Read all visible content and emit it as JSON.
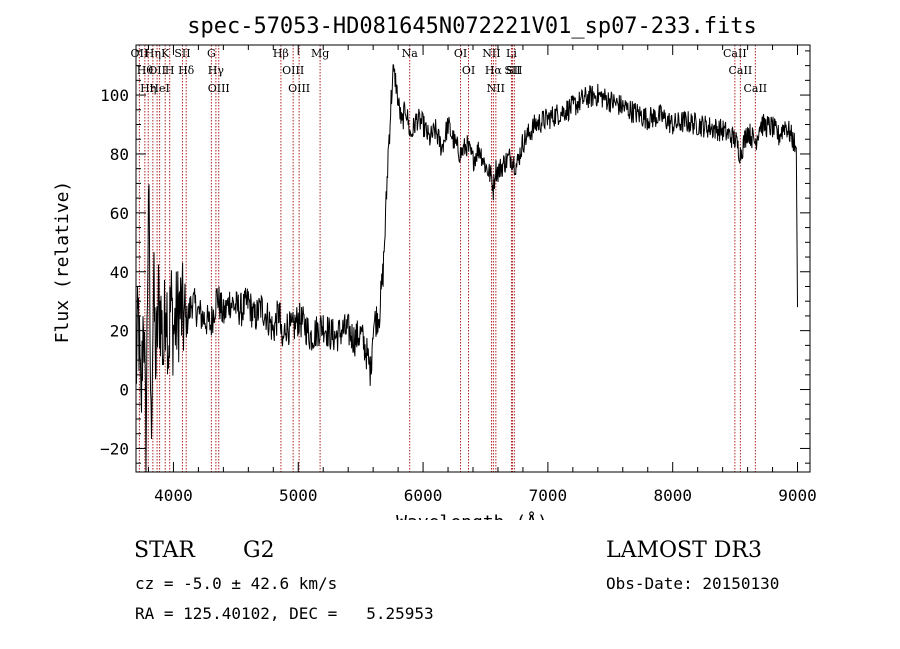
{
  "chart_data": {
    "type": "line",
    "title": "spec-57053-HD081645N072221V01_sp07-233.fits",
    "xlabel": "Wavelength (Å)",
    "ylabel": "Flux (relative)",
    "xlim": [
      3700,
      9100
    ],
    "ylim": [
      -28,
      117
    ],
    "xticks": [
      4000,
      5000,
      6000,
      7000,
      8000,
      9000
    ],
    "yticks": [
      -20,
      0,
      20,
      40,
      60,
      80,
      100
    ],
    "series": [
      {
        "name": "flux",
        "x": [
          3700,
          3720,
          3740,
          3760,
          3780,
          3800,
          3820,
          3840,
          3860,
          3880,
          3900,
          3920,
          3940,
          3960,
          3980,
          4000,
          4050,
          4100,
          4150,
          4200,
          4250,
          4300,
          4350,
          4400,
          4450,
          4500,
          4550,
          4600,
          4650,
          4700,
          4750,
          4800,
          4850,
          4870,
          4900,
          4950,
          5000,
          5050,
          5100,
          5150,
          5200,
          5250,
          5300,
          5350,
          5400,
          5450,
          5500,
          5550,
          5580,
          5600,
          5650,
          5680,
          5700,
          5720,
          5740,
          5760,
          5780,
          5800,
          5830,
          5860,
          5900,
          5950,
          6000,
          6050,
          6100,
          6150,
          6200,
          6250,
          6300,
          6350,
          6400,
          6450,
          6500,
          6550,
          6563,
          6580,
          6600,
          6650,
          6700,
          6750,
          6800,
          6900,
          7000,
          7100,
          7200,
          7300,
          7400,
          7500,
          7600,
          7700,
          7800,
          7900,
          8000,
          8100,
          8200,
          8300,
          8400,
          8500,
          8542,
          8600,
          8662,
          8700,
          8800,
          8850,
          8900,
          8950,
          8990,
          9000
        ],
        "y": [
          5,
          25,
          -10,
          30,
          -22,
          72,
          -15,
          35,
          8,
          30,
          25,
          12,
          35,
          15,
          30,
          20,
          28,
          22,
          30,
          26,
          24,
          22,
          32,
          25,
          30,
          28,
          27,
          30,
          24,
          28,
          25,
          20,
          27,
          14,
          22,
          20,
          24,
          22,
          18,
          20,
          22,
          19,
          18,
          20,
          20,
          17,
          19,
          12,
          6,
          22,
          26,
          40,
          58,
          80,
          95,
          108,
          105,
          98,
          90,
          96,
          86,
          92,
          90,
          85,
          88,
          82,
          90,
          84,
          80,
          83,
          78,
          82,
          76,
          72,
          68,
          75,
          74,
          77,
          79,
          76,
          84,
          90,
          92,
          94,
          96,
          99,
          100,
          98,
          96,
          94,
          92,
          93,
          90,
          91,
          90,
          89,
          88,
          85,
          80,
          88,
          84,
          90,
          89,
          86,
          90,
          86,
          82,
          28
        ]
      }
    ],
    "line_markers": [
      {
        "wavelength": 3727,
        "label": "OII"
      },
      {
        "wavelength": 3771,
        "label": "Hθ"
      },
      {
        "wavelength": 3798,
        "label": "Hη"
      },
      {
        "wavelength": 3835,
        "label": "Hη"
      },
      {
        "wavelength": 3869,
        "label": "OII"
      },
      {
        "wavelength": 3889,
        "label": "HeI"
      },
      {
        "wavelength": 3934,
        "label": "K"
      },
      {
        "wavelength": 3970,
        "label": "H"
      },
      {
        "wavelength": 4072,
        "label": "SII"
      },
      {
        "wavelength": 4102,
        "label": "Hδ"
      },
      {
        "wavelength": 4304,
        "label": "G"
      },
      {
        "wavelength": 4340,
        "label": "Hγ"
      },
      {
        "wavelength": 4363,
        "label": "OIII"
      },
      {
        "wavelength": 4861,
        "label": "Hβ"
      },
      {
        "wavelength": 4959,
        "label": "OIII"
      },
      {
        "wavelength": 5007,
        "label": "OIII"
      },
      {
        "wavelength": 5175,
        "label": "Mg"
      },
      {
        "wavelength": 5893,
        "label": "Na"
      },
      {
        "wavelength": 6300,
        "label": "OI"
      },
      {
        "wavelength": 6364,
        "label": "OI"
      },
      {
        "wavelength": 6548,
        "label": "NII"
      },
      {
        "wavelength": 6563,
        "label": "Hα"
      },
      {
        "wavelength": 6583,
        "label": "NII"
      },
      {
        "wavelength": 6708,
        "label": "Li"
      },
      {
        "wavelength": 6716,
        "label": "SII"
      },
      {
        "wavelength": 6731,
        "label": "SII"
      },
      {
        "wavelength": 8498,
        "label": "CaII"
      },
      {
        "wavelength": 8542,
        "label": "CaII"
      },
      {
        "wavelength": 8662,
        "label": "CaII"
      }
    ]
  },
  "info": {
    "class": "STAR",
    "subclass": "G2",
    "survey": "LAMOST DR3",
    "cz": "cz = -5.0 ± 42.6 km/s",
    "obs_date": "Obs-Date: 20150130",
    "coords": "RA = 125.40102, DEC =   5.25953"
  }
}
